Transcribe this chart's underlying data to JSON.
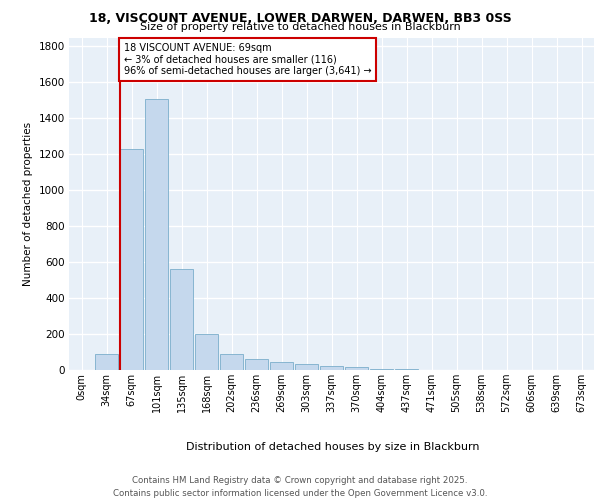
{
  "title_line1": "18, VISCOUNT AVENUE, LOWER DARWEN, DARWEN, BB3 0SS",
  "title_line2": "Size of property relative to detached houses in Blackburn",
  "xlabel": "Distribution of detached houses by size in Blackburn",
  "ylabel": "Number of detached properties",
  "categories": [
    "0sqm",
    "34sqm",
    "67sqm",
    "101sqm",
    "135sqm",
    "168sqm",
    "202sqm",
    "236sqm",
    "269sqm",
    "303sqm",
    "337sqm",
    "370sqm",
    "404sqm",
    "437sqm",
    "471sqm",
    "505sqm",
    "538sqm",
    "572sqm",
    "606sqm",
    "639sqm",
    "673sqm"
  ],
  "values": [
    0,
    90,
    1230,
    1510,
    560,
    200,
    90,
    60,
    45,
    35,
    20,
    15,
    5,
    3,
    2,
    1,
    1,
    0,
    0,
    0,
    0
  ],
  "highlight_bar_index": 2,
  "bar_color": "#c5d8ed",
  "bar_edge_color": "#7aaecb",
  "highlight_line_color": "#cc0000",
  "annotation_text": "18 VISCOUNT AVENUE: 69sqm\n← 3% of detached houses are smaller (116)\n96% of semi-detached houses are larger (3,641) →",
  "annotation_box_color": "#ffffff",
  "annotation_box_edge": "#cc0000",
  "ylim": [
    0,
    1850
  ],
  "yticks": [
    0,
    200,
    400,
    600,
    800,
    1000,
    1200,
    1400,
    1600,
    1800
  ],
  "background_color": "#e8f0f8",
  "grid_color": "#ffffff",
  "footer_line1": "Contains HM Land Registry data © Crown copyright and database right 2025.",
  "footer_line2": "Contains public sector information licensed under the Open Government Licence v3.0."
}
